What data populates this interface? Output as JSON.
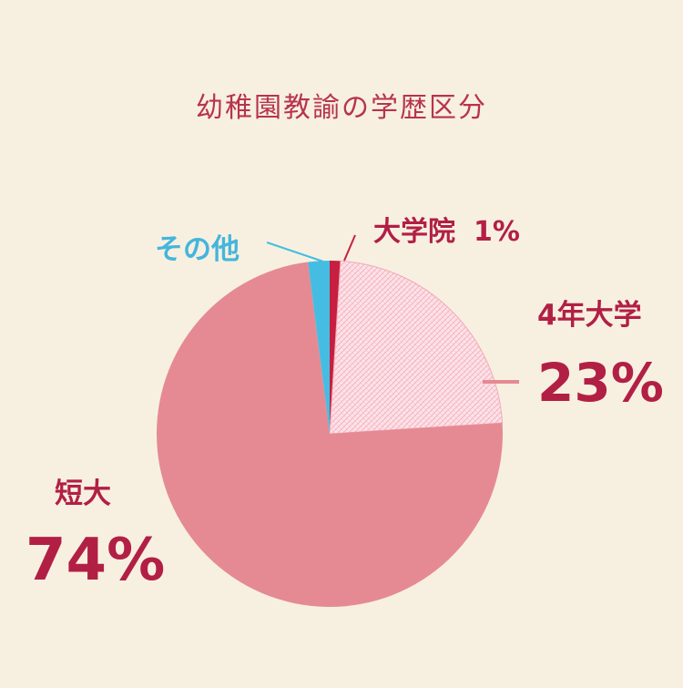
{
  "colors": {
    "background": "#f7f0e1",
    "accent": "#b21f45",
    "title": "#b8334f",
    "slice_junior_college": "#e58a93",
    "slice_four_year": "#fde3e8",
    "slice_graduate": "#c71f3f",
    "slice_other": "#45bde3",
    "other_label": "#45b5dc"
  },
  "chart_data": {
    "type": "pie",
    "title": "幼稚園教諭の学歴区分",
    "slices": [
      {
        "label": "大学院",
        "value": 1,
        "percent_text": "1%"
      },
      {
        "label": "4年大学",
        "value": 23,
        "percent_text": "23%"
      },
      {
        "label": "短大",
        "value": 74,
        "percent_text": "74%"
      },
      {
        "label": "その他",
        "value": 2,
        "percent_text": ""
      }
    ]
  }
}
